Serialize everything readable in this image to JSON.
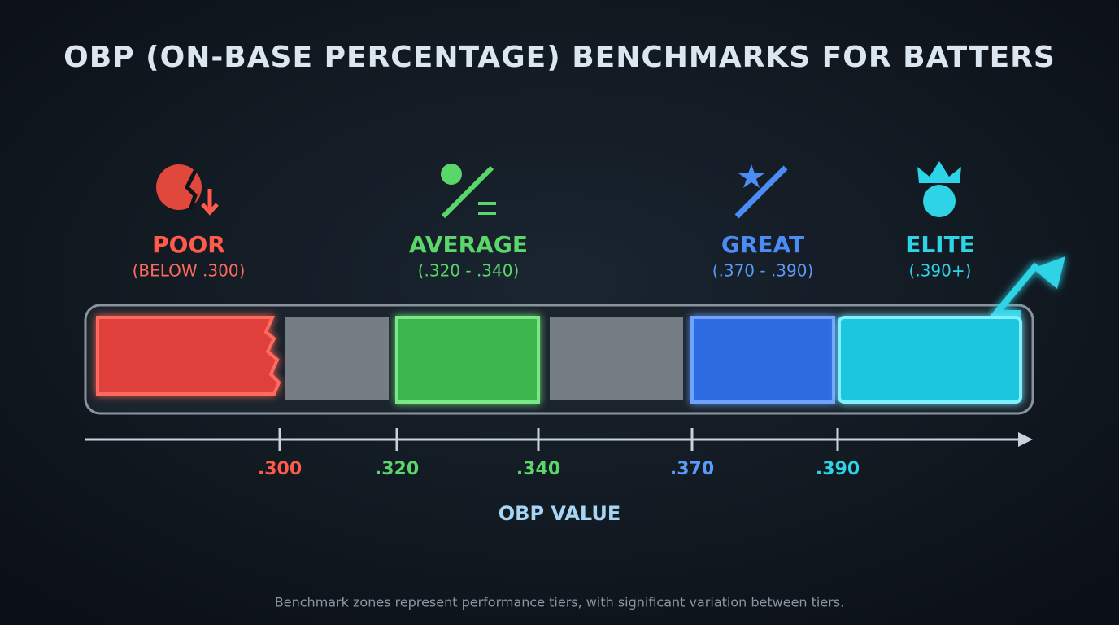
{
  "header": {
    "title": "OBP (ON-BASE PERCENTAGE) BENCHMARKS FOR BATTERS"
  },
  "tiers": [
    {
      "label": "POOR",
      "range": "(BELOW .300)"
    },
    {
      "label": "AVERAGE",
      "range": "(.320 - .340)"
    },
    {
      "label": "GREAT",
      "range": "(.370 - .390)"
    },
    {
      "label": "ELITE",
      "range": "(.390+)"
    }
  ],
  "axis": {
    "ticks": [
      ".300",
      ".320",
      ".340",
      ".370",
      ".390"
    ],
    "title": "OBP VALUE"
  },
  "footnote": "Benchmark zones represent performance tiers, with significant variation between tiers."
}
